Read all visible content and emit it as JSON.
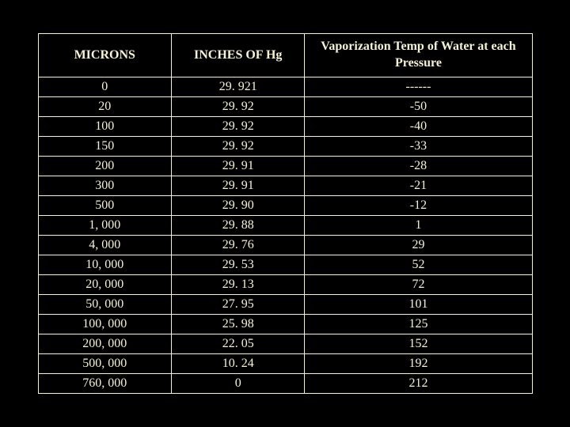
{
  "table": {
    "background_color": "#000000",
    "border_color": "#f5f2d8",
    "text_color": "#f5f2d8",
    "font_family": "Times New Roman",
    "header_fontsize": 16,
    "cell_fontsize": 16,
    "columns": [
      {
        "label": "MICRONS",
        "width_pct": 27
      },
      {
        "label": "INCHES OF Hg",
        "width_pct": 27
      },
      {
        "label": "Vaporization Temp of Water at each Pressure",
        "width_pct": 46
      }
    ],
    "rows": [
      {
        "microns": "0",
        "inches": "29. 921",
        "vapor": "------"
      },
      {
        "microns": "20",
        "inches": "29. 92",
        "vapor": "-50"
      },
      {
        "microns": "100",
        "inches": "29. 92",
        "vapor": "-40"
      },
      {
        "microns": "150",
        "inches": "29. 92",
        "vapor": "-33"
      },
      {
        "microns": "200",
        "inches": "29. 91",
        "vapor": "-28"
      },
      {
        "microns": "300",
        "inches": "29. 91",
        "vapor": "-21"
      },
      {
        "microns": "500",
        "inches": "29. 90",
        "vapor": "-12"
      },
      {
        "microns": "1, 000",
        "inches": "29. 88",
        "vapor": "1"
      },
      {
        "microns": "4, 000",
        "inches": "29. 76",
        "vapor": "29"
      },
      {
        "microns": "10, 000",
        "inches": "29. 53",
        "vapor": "52"
      },
      {
        "microns": "20, 000",
        "inches": "29. 13",
        "vapor": "72"
      },
      {
        "microns": "50, 000",
        "inches": "27. 95",
        "vapor": "101"
      },
      {
        "microns": "100, 000",
        "inches": "25. 98",
        "vapor": "125"
      },
      {
        "microns": "200, 000",
        "inches": "22. 05",
        "vapor": "152"
      },
      {
        "microns": "500, 000",
        "inches": "10. 24",
        "vapor": "192"
      },
      {
        "microns": "760, 000",
        "inches": "0",
        "vapor": "212"
      }
    ]
  }
}
